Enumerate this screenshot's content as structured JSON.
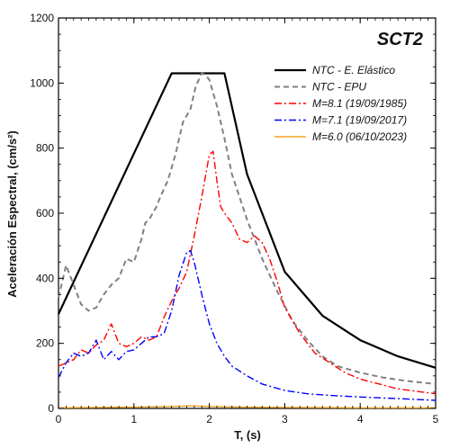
{
  "chart_data": {
    "type": "line",
    "title": "SCT2",
    "xlabel": "T, (s)",
    "ylabel": "Aceleración Espectral, (cm/s²)",
    "xlim": [
      0,
      5
    ],
    "ylim": [
      0,
      1200
    ],
    "x_ticks": [
      0,
      1,
      2,
      3,
      4,
      5
    ],
    "y_ticks": [
      0,
      200,
      400,
      600,
      800,
      1000,
      1200
    ],
    "x_tick_labels": [
      "0",
      "1",
      "2",
      "3",
      "4",
      "5"
    ],
    "y_tick_labels": [
      "0",
      "200",
      "400",
      "600",
      "800",
      "1000",
      "1200"
    ],
    "grid": false,
    "legend_position": "top-right",
    "series": [
      {
        "name": "NTC - E. Elástico",
        "color": "#000000",
        "style": "solid",
        "x": [
          0,
          1.5,
          2.2,
          2.5,
          3.0,
          3.5,
          4.0,
          4.5,
          5.0
        ],
        "y": [
          290,
          1030,
          1030,
          720,
          420,
          285,
          210,
          160,
          125
        ]
      },
      {
        "name": "NTC - EPU",
        "color": "#808080",
        "style": "dashed",
        "x": [
          0,
          0.05,
          0.1,
          0.15,
          0.2,
          0.3,
          0.4,
          0.5,
          0.6,
          0.7,
          0.8,
          0.9,
          1.0,
          1.1,
          1.15,
          1.2,
          1.3,
          1.35,
          1.45,
          1.55,
          1.65,
          1.75,
          1.82,
          1.9,
          1.95,
          2.0,
          2.1,
          2.2,
          2.3,
          2.5,
          2.7,
          2.9,
          3.1,
          3.3,
          3.5,
          3.7,
          4.0,
          4.3,
          4.6,
          5.0
        ],
        "y": [
          340,
          390,
          440,
          410,
          380,
          320,
          300,
          310,
          350,
          380,
          400,
          460,
          450,
          520,
          570,
          580,
          620,
          650,
          700,
          780,
          880,
          920,
          990,
          1030,
          1025,
          1010,
          930,
          830,
          720,
          580,
          460,
          360,
          270,
          210,
          160,
          130,
          110,
          95,
          85,
          75
        ]
      },
      {
        "name": "M=8.1 (19/09/1985)",
        "color": "#ff0000",
        "style": "dashdot",
        "x": [
          0,
          0.1,
          0.2,
          0.3,
          0.4,
          0.5,
          0.6,
          0.7,
          0.8,
          0.9,
          1.0,
          1.1,
          1.2,
          1.3,
          1.4,
          1.5,
          1.6,
          1.7,
          1.8,
          1.9,
          2.0,
          2.05,
          2.1,
          2.15,
          2.2,
          2.3,
          2.4,
          2.5,
          2.6,
          2.7,
          2.8,
          2.9,
          3.0,
          3.2,
          3.4,
          3.6,
          3.8,
          4.0,
          4.5,
          5.0
        ],
        "y": [
          130,
          140,
          150,
          180,
          170,
          195,
          210,
          260,
          200,
          190,
          200,
          220,
          210,
          220,
          280,
          330,
          370,
          420,
          530,
          650,
          780,
          790,
          700,
          620,
          600,
          570,
          520,
          510,
          530,
          510,
          460,
          390,
          310,
          230,
          170,
          140,
          110,
          90,
          60,
          45
        ]
      },
      {
        "name": "M=7.1 (19/09/2017)",
        "color": "#0000ff",
        "style": "dashdot",
        "x": [
          0,
          0.1,
          0.2,
          0.3,
          0.4,
          0.5,
          0.6,
          0.7,
          0.8,
          0.9,
          1.0,
          1.1,
          1.2,
          1.3,
          1.4,
          1.5,
          1.6,
          1.7,
          1.75,
          1.8,
          1.9,
          2.0,
          2.1,
          2.2,
          2.3,
          2.5,
          2.7,
          3.0,
          3.3,
          3.6,
          4.0,
          4.5,
          5.0
        ],
        "y": [
          95,
          140,
          170,
          160,
          170,
          210,
          150,
          175,
          150,
          175,
          180,
          200,
          220,
          220,
          230,
          300,
          410,
          480,
          485,
          450,
          350,
          260,
          200,
          160,
          130,
          100,
          75,
          55,
          45,
          40,
          35,
          30,
          25
        ]
      },
      {
        "name": "M=6.0 (06/10/2023)",
        "color": "#f5a623",
        "style": "solid",
        "x": [
          0,
          0.5,
          1.0,
          1.5,
          1.75,
          2.0,
          2.5,
          3.0,
          4.0,
          5.0
        ],
        "y": [
          2,
          3,
          4,
          6,
          8,
          6,
          4,
          3,
          2,
          2
        ]
      }
    ]
  }
}
